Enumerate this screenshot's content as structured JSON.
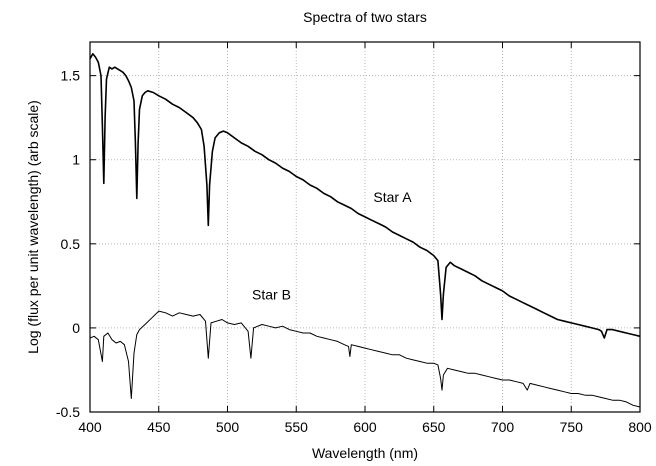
{
  "chart_data": {
    "type": "line",
    "title": "Spectra of two stars",
    "xlabel": "Wavelength (nm)",
    "ylabel": "Log (flux per unit wavelength) (arb scale)",
    "xlim": [
      400,
      800
    ],
    "ylim": [
      -0.5,
      1.7
    ],
    "grid": true,
    "x_ticks": [
      400,
      450,
      500,
      550,
      600,
      650,
      700,
      750,
      800
    ],
    "y_ticks": [
      -0.5,
      0,
      0.5,
      1,
      1.5
    ],
    "x_tick_labels": [
      "400",
      "450",
      "500",
      "550",
      "600",
      "650",
      "700",
      "750",
      "800"
    ],
    "y_tick_labels": [
      "-0.5",
      "0",
      "0.5",
      "1",
      "1.5"
    ],
    "series": [
      {
        "name": "Star A",
        "color": "#000000",
        "points": [
          [
            400,
            1.6
          ],
          [
            402,
            1.63
          ],
          [
            404,
            1.61
          ],
          [
            406,
            1.58
          ],
          [
            408,
            1.5
          ],
          [
            409,
            1.2
          ],
          [
            410,
            0.86
          ],
          [
            411,
            1.25
          ],
          [
            412,
            1.48
          ],
          [
            414,
            1.55
          ],
          [
            416,
            1.54
          ],
          [
            418,
            1.55
          ],
          [
            420,
            1.54
          ],
          [
            422,
            1.53
          ],
          [
            424,
            1.52
          ],
          [
            426,
            1.5
          ],
          [
            428,
            1.47
          ],
          [
            430,
            1.43
          ],
          [
            432,
            1.35
          ],
          [
            433,
            1.1
          ],
          [
            434,
            0.77
          ],
          [
            435,
            1.1
          ],
          [
            436,
            1.3
          ],
          [
            438,
            1.38
          ],
          [
            440,
            1.4
          ],
          [
            442,
            1.41
          ],
          [
            446,
            1.4
          ],
          [
            450,
            1.38
          ],
          [
            455,
            1.36
          ],
          [
            460,
            1.33
          ],
          [
            465,
            1.31
          ],
          [
            470,
            1.28
          ],
          [
            475,
            1.25
          ],
          [
            478,
            1.22
          ],
          [
            481,
            1.18
          ],
          [
            483,
            1.08
          ],
          [
            485,
            0.85
          ],
          [
            486,
            0.61
          ],
          [
            487,
            0.85
          ],
          [
            489,
            1.05
          ],
          [
            491,
            1.13
          ],
          [
            494,
            1.16
          ],
          [
            497,
            1.17
          ],
          [
            500,
            1.16
          ],
          [
            505,
            1.13
          ],
          [
            510,
            1.1
          ],
          [
            515,
            1.08
          ],
          [
            520,
            1.05
          ],
          [
            525,
            1.03
          ],
          [
            530,
            1.0
          ],
          [
            535,
            0.98
          ],
          [
            540,
            0.95
          ],
          [
            545,
            0.93
          ],
          [
            550,
            0.9
          ],
          [
            555,
            0.88
          ],
          [
            560,
            0.85
          ],
          [
            565,
            0.83
          ],
          [
            570,
            0.8
          ],
          [
            575,
            0.78
          ],
          [
            580,
            0.75
          ],
          [
            585,
            0.73
          ],
          [
            590,
            0.71
          ],
          [
            595,
            0.68
          ],
          [
            600,
            0.66
          ],
          [
            605,
            0.64
          ],
          [
            610,
            0.62
          ],
          [
            615,
            0.6
          ],
          [
            620,
            0.57
          ],
          [
            625,
            0.55
          ],
          [
            630,
            0.53
          ],
          [
            635,
            0.51
          ],
          [
            640,
            0.48
          ],
          [
            645,
            0.46
          ],
          [
            650,
            0.43
          ],
          [
            653,
            0.4
          ],
          [
            655,
            0.2
          ],
          [
            656,
            0.05
          ],
          [
            657,
            0.2
          ],
          [
            659,
            0.36
          ],
          [
            662,
            0.39
          ],
          [
            665,
            0.37
          ],
          [
            670,
            0.35
          ],
          [
            675,
            0.33
          ],
          [
            680,
            0.31
          ],
          [
            685,
            0.28
          ],
          [
            690,
            0.26
          ],
          [
            695,
            0.24
          ],
          [
            700,
            0.22
          ],
          [
            705,
            0.19
          ],
          [
            710,
            0.17
          ],
          [
            715,
            0.15
          ],
          [
            720,
            0.13
          ],
          [
            725,
            0.11
          ],
          [
            730,
            0.09
          ],
          [
            735,
            0.07
          ],
          [
            740,
            0.05
          ],
          [
            745,
            0.04
          ],
          [
            750,
            0.03
          ],
          [
            755,
            0.02
          ],
          [
            760,
            0.01
          ],
          [
            765,
            0.0
          ],
          [
            770,
            -0.01
          ],
          [
            772,
            -0.02
          ],
          [
            774,
            -0.06
          ],
          [
            776,
            -0.01
          ],
          [
            780,
            -0.01
          ],
          [
            785,
            -0.02
          ],
          [
            790,
            -0.03
          ],
          [
            795,
            -0.04
          ],
          [
            800,
            -0.05
          ]
        ]
      },
      {
        "name": "Star B",
        "color": "#000000",
        "points": [
          [
            400,
            -0.06
          ],
          [
            403,
            -0.05
          ],
          [
            406,
            -0.07
          ],
          [
            409,
            -0.2
          ],
          [
            410,
            -0.05
          ],
          [
            413,
            -0.03
          ],
          [
            416,
            -0.07
          ],
          [
            419,
            -0.09
          ],
          [
            422,
            -0.08
          ],
          [
            425,
            -0.1
          ],
          [
            428,
            -0.2
          ],
          [
            430,
            -0.42
          ],
          [
            432,
            -0.15
          ],
          [
            434,
            -0.04
          ],
          [
            436,
            -0.01
          ],
          [
            440,
            0.02
          ],
          [
            445,
            0.06
          ],
          [
            450,
            0.1
          ],
          [
            455,
            0.09
          ],
          [
            460,
            0.07
          ],
          [
            465,
            0.09
          ],
          [
            470,
            0.08
          ],
          [
            475,
            0.07
          ],
          [
            480,
            0.08
          ],
          [
            484,
            0.04
          ],
          [
            486,
            -0.18
          ],
          [
            488,
            0.03
          ],
          [
            492,
            0.04
          ],
          [
            496,
            0.05
          ],
          [
            500,
            0.03
          ],
          [
            505,
            0.02
          ],
          [
            510,
            0.03
          ],
          [
            515,
            -0.02
          ],
          [
            517,
            -0.18
          ],
          [
            519,
            0.0
          ],
          [
            525,
            0.02
          ],
          [
            530,
            0.01
          ],
          [
            535,
            0.0
          ],
          [
            540,
            0.01
          ],
          [
            545,
            -0.01
          ],
          [
            550,
            -0.02
          ],
          [
            555,
            -0.03
          ],
          [
            560,
            -0.03
          ],
          [
            565,
            -0.05
          ],
          [
            570,
            -0.06
          ],
          [
            575,
            -0.07
          ],
          [
            580,
            -0.08
          ],
          [
            585,
            -0.1
          ],
          [
            588,
            -0.11
          ],
          [
            589,
            -0.17
          ],
          [
            590,
            -0.1
          ],
          [
            595,
            -0.11
          ],
          [
            600,
            -0.12
          ],
          [
            605,
            -0.13
          ],
          [
            610,
            -0.14
          ],
          [
            615,
            -0.15
          ],
          [
            620,
            -0.16
          ],
          [
            625,
            -0.16
          ],
          [
            630,
            -0.18
          ],
          [
            635,
            -0.19
          ],
          [
            640,
            -0.2
          ],
          [
            645,
            -0.21
          ],
          [
            650,
            -0.21
          ],
          [
            653,
            -0.22
          ],
          [
            655,
            -0.3
          ],
          [
            656,
            -0.37
          ],
          [
            657,
            -0.28
          ],
          [
            660,
            -0.24
          ],
          [
            665,
            -0.25
          ],
          [
            670,
            -0.26
          ],
          [
            675,
            -0.27
          ],
          [
            680,
            -0.27
          ],
          [
            685,
            -0.28
          ],
          [
            690,
            -0.29
          ],
          [
            695,
            -0.3
          ],
          [
            700,
            -0.31
          ],
          [
            705,
            -0.31
          ],
          [
            710,
            -0.32
          ],
          [
            715,
            -0.33
          ],
          [
            718,
            -0.37
          ],
          [
            720,
            -0.33
          ],
          [
            725,
            -0.34
          ],
          [
            730,
            -0.35
          ],
          [
            735,
            -0.36
          ],
          [
            740,
            -0.37
          ],
          [
            745,
            -0.38
          ],
          [
            750,
            -0.39
          ],
          [
            755,
            -0.39
          ],
          [
            760,
            -0.4
          ],
          [
            765,
            -0.4
          ],
          [
            770,
            -0.41
          ],
          [
            775,
            -0.42
          ],
          [
            780,
            -0.43
          ],
          [
            785,
            -0.43
          ],
          [
            790,
            -0.44
          ],
          [
            795,
            -0.46
          ],
          [
            800,
            -0.47
          ]
        ]
      }
    ],
    "annotations": [
      {
        "text": "Star A",
        "x": 620,
        "y": 0.75
      },
      {
        "text": "Star B",
        "x": 532,
        "y": 0.17
      }
    ]
  }
}
